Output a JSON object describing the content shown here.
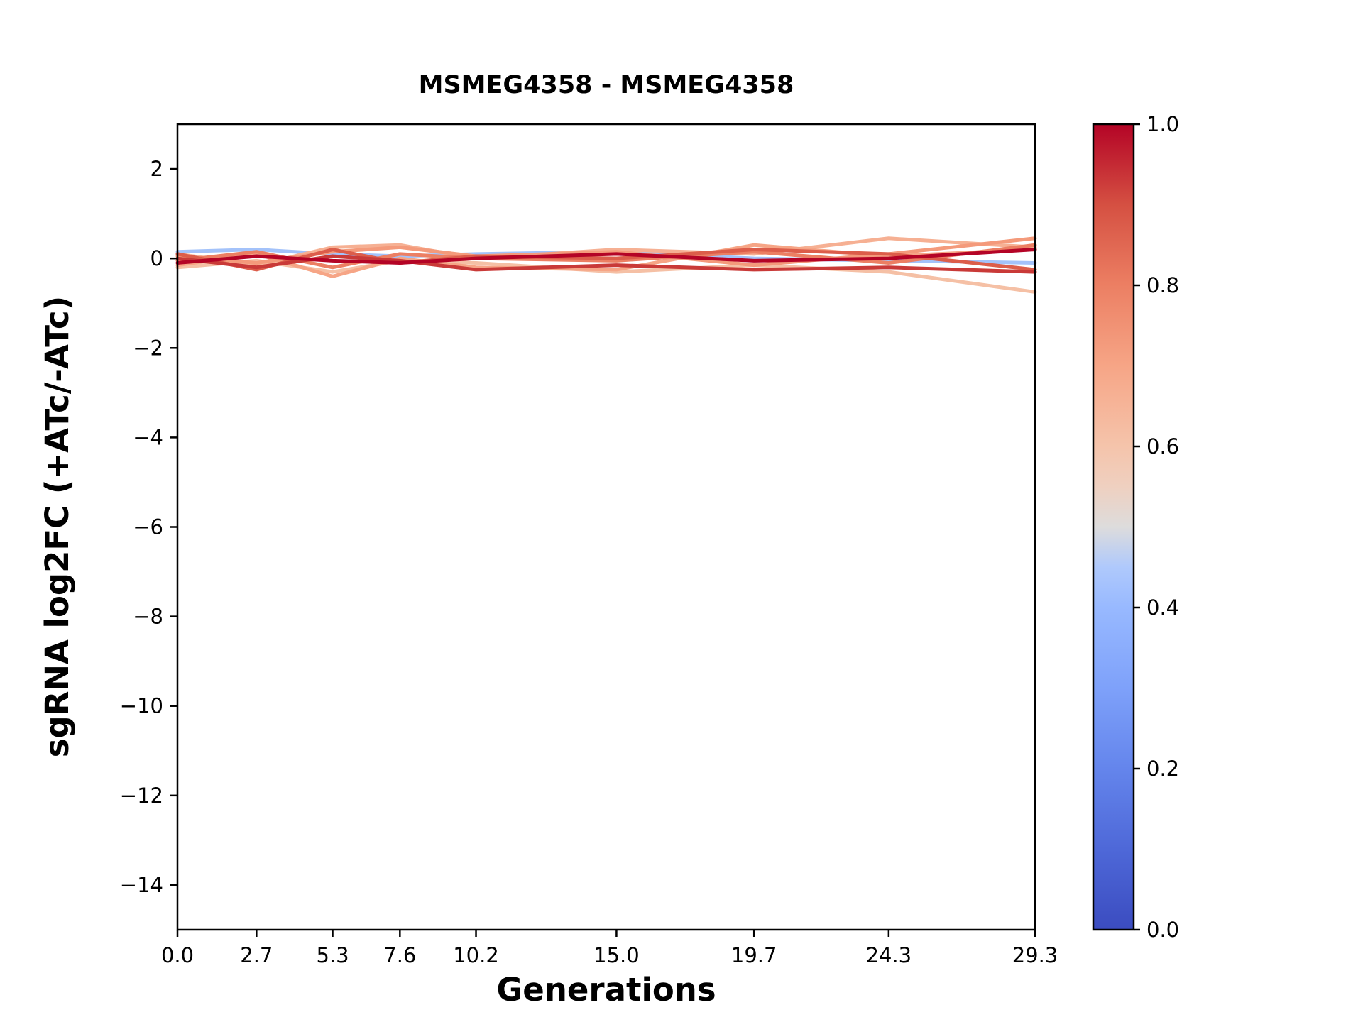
{
  "chart": {
    "title": "MSMEG4358 - MSMEG4358",
    "xlabel": "Generations",
    "ylabel": "sgRNA log2FC (+ATc/-ATc)"
  },
  "chart_data": {
    "type": "line",
    "title": "MSMEG4358 - MSMEG4358",
    "xlabel": "Generations",
    "ylabel": "sgRNA log2FC (+ATc/-ATc)",
    "grid": false,
    "legend": "none",
    "x": [
      0.0,
      2.7,
      5.3,
      7.6,
      10.2,
      15.0,
      19.7,
      24.3,
      29.3
    ],
    "xlim": [
      0.0,
      29.3
    ],
    "ylim": [
      -15.0,
      3.0
    ],
    "xticks": {
      "values": [
        0.0,
        2.7,
        5.3,
        7.6,
        10.2,
        15.0,
        19.7,
        24.3,
        29.3
      ],
      "labels": [
        "0.0",
        "2.7",
        "5.3",
        "7.6",
        "10.2",
        "15.0",
        "19.7",
        "24.3",
        "29.3"
      ]
    },
    "yticks": {
      "values": [
        2,
        0,
        -2,
        -4,
        -6,
        -8,
        -10,
        -12,
        -14
      ],
      "labels": [
        "2",
        "0",
        "−2",
        "−4",
        "−6",
        "−8",
        "−10",
        "−12",
        "−14"
      ]
    },
    "series": [
      {
        "colormap_value": 0.4,
        "color": "#A3C2FA",
        "y": [
          0.15,
          0.2,
          0.1,
          0.05,
          0.1,
          0.15,
          0.0,
          -0.05,
          -0.1
        ]
      },
      {
        "colormap_value": 0.6,
        "color": "#F5C0A5",
        "y": [
          -0.2,
          -0.05,
          -0.3,
          -0.05,
          -0.1,
          -0.3,
          -0.15,
          -0.3,
          -0.75
        ]
      },
      {
        "colormap_value": 0.65,
        "color": "#F6B093",
        "y": [
          0.1,
          -0.15,
          0.25,
          0.3,
          0.0,
          0.2,
          0.1,
          0.45,
          0.25
        ]
      },
      {
        "colormap_value": 0.7,
        "color": "#F6A586",
        "y": [
          -0.15,
          0.1,
          -0.4,
          0.0,
          -0.2,
          -0.25,
          0.3,
          0.05,
          0.2
        ]
      },
      {
        "colormap_value": 0.75,
        "color": "#F49A7B",
        "y": [
          0.05,
          -0.1,
          0.15,
          0.25,
          0.05,
          0.15,
          -0.15,
          0.1,
          0.45
        ]
      },
      {
        "colormap_value": 0.8,
        "color": "#EC7F63",
        "y": [
          -0.05,
          0.15,
          -0.2,
          0.1,
          0.0,
          -0.05,
          0.15,
          -0.1,
          0.3
        ]
      },
      {
        "colormap_value": 0.85,
        "color": "#DC5D4A",
        "y": [
          0.1,
          -0.25,
          0.2,
          -0.1,
          0.05,
          0.0,
          0.2,
          0.1,
          -0.25
        ]
      },
      {
        "colormap_value": 0.92,
        "color": "#C93A38",
        "y": [
          0.0,
          -0.2,
          0.05,
          -0.05,
          -0.25,
          -0.15,
          -0.25,
          -0.2,
          -0.3
        ]
      },
      {
        "colormap_value": 1.0,
        "color": "#B40426",
        "y": [
          -0.1,
          0.05,
          -0.05,
          -0.1,
          0.0,
          0.1,
          -0.05,
          0.0,
          0.2
        ]
      }
    ],
    "colorbar": {
      "min": 0.0,
      "max": 1.0,
      "colormap": "coolwarm",
      "ticks": {
        "values": [
          1.0,
          0.8,
          0.6,
          0.4,
          0.2,
          0.0
        ],
        "labels": [
          "1.0",
          "0.8",
          "0.6",
          "0.4",
          "0.2",
          "0.0"
        ]
      },
      "gradient_stops": [
        {
          "offset": 0.0,
          "color": "#3B4CC0"
        },
        {
          "offset": 0.1,
          "color": "#4E68D8"
        },
        {
          "offset": 0.2,
          "color": "#6485EC"
        },
        {
          "offset": 0.3,
          "color": "#7EA1FA"
        },
        {
          "offset": 0.4,
          "color": "#98B9FF"
        },
        {
          "offset": 0.45,
          "color": "#AFC9FC"
        },
        {
          "offset": 0.5,
          "color": "#DDDCDC"
        },
        {
          "offset": 0.55,
          "color": "#EFD0C0"
        },
        {
          "offset": 0.6,
          "color": "#F5C4AB"
        },
        {
          "offset": 0.7,
          "color": "#F6A586"
        },
        {
          "offset": 0.8,
          "color": "#EC7F63"
        },
        {
          "offset": 0.9,
          "color": "#D55042"
        },
        {
          "offset": 1.0,
          "color": "#B40426"
        }
      ]
    }
  }
}
